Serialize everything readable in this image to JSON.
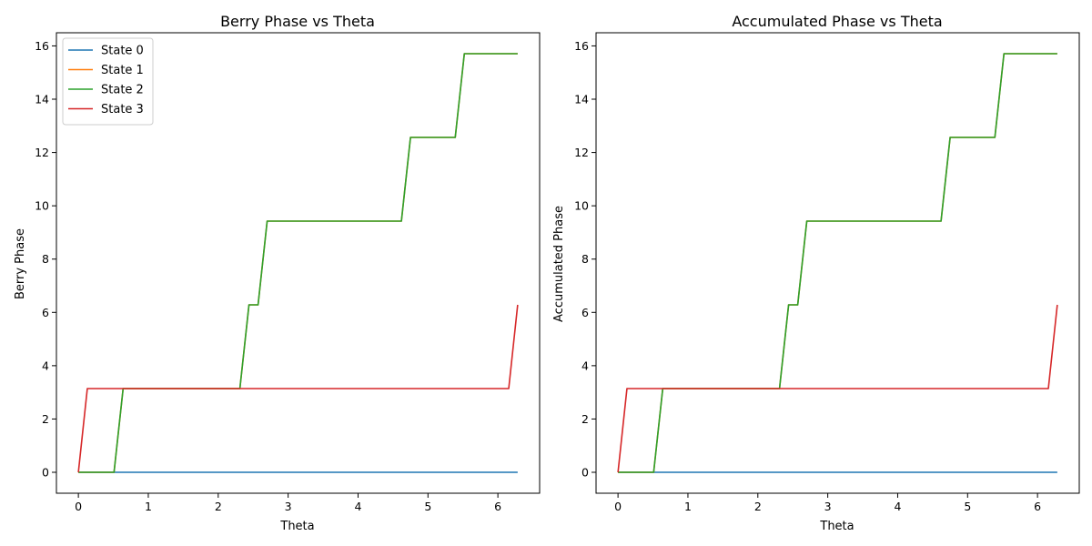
{
  "figure": {
    "colors": {
      "state0": "#1f77b4",
      "state1": "#ff7f0e",
      "state2": "#2ca02c",
      "state3": "#d62728",
      "axes": "#000000",
      "background": "#ffffff"
    }
  },
  "chart_data": [
    {
      "type": "line",
      "title": "Berry Phase vs Theta",
      "xlabel": "Theta",
      "ylabel": "Berry Phase",
      "xlim": [
        -0.314,
        6.597
      ],
      "ylim": [
        -0.785,
        16.493
      ],
      "xticks": [
        0,
        1,
        2,
        3,
        4,
        5,
        6
      ],
      "yticks": [
        0,
        2,
        4,
        6,
        8,
        10,
        12,
        14,
        16
      ],
      "grid": false,
      "legend": "upper-left",
      "series": [
        {
          "name": "State 0",
          "color_key": "state0",
          "x": [
            0,
            6.283
          ],
          "y": [
            0,
            0
          ]
        },
        {
          "name": "State 1",
          "color_key": "state1",
          "x": [
            0,
            0.51,
            0.64,
            2.31,
            2.44,
            2.57,
            2.7,
            4.62,
            4.75,
            5.39,
            5.52,
            6.283
          ],
          "y": [
            0,
            0,
            3.1416,
            3.1416,
            6.2832,
            6.2832,
            9.4248,
            9.4248,
            12.566,
            12.566,
            15.708,
            15.708
          ]
        },
        {
          "name": "State 2",
          "color_key": "state2",
          "x": [
            0,
            0.51,
            0.64,
            2.31,
            2.44,
            2.57,
            2.7,
            4.62,
            4.75,
            5.39,
            5.52,
            6.283
          ],
          "y": [
            0,
            0,
            3.1416,
            3.1416,
            6.2832,
            6.2832,
            9.4248,
            9.4248,
            12.566,
            12.566,
            15.708,
            15.708
          ]
        },
        {
          "name": "State 3",
          "color_key": "state3",
          "x": [
            0,
            0.128,
            6.155,
            6.283
          ],
          "y": [
            0,
            3.1416,
            3.1416,
            6.2832
          ]
        }
      ]
    },
    {
      "type": "line",
      "title": "Accumulated Phase vs Theta",
      "xlabel": "Theta",
      "ylabel": "Accumulated Phase",
      "xlim": [
        -0.314,
        6.597
      ],
      "ylim": [
        -0.785,
        16.493
      ],
      "xticks": [
        0,
        1,
        2,
        3,
        4,
        5,
        6
      ],
      "yticks": [
        0,
        2,
        4,
        6,
        8,
        10,
        12,
        14,
        16
      ],
      "grid": false,
      "legend": "",
      "series": [
        {
          "color_key": "state0",
          "x": [
            0,
            6.283
          ],
          "y": [
            0,
            0
          ]
        },
        {
          "color_key": "state1",
          "x": [
            0,
            0.51,
            0.64,
            2.31,
            2.44,
            2.57,
            2.7,
            4.62,
            4.75,
            5.39,
            5.52,
            6.283
          ],
          "y": [
            0,
            0,
            3.1416,
            3.1416,
            6.2832,
            6.2832,
            9.4248,
            9.4248,
            12.566,
            12.566,
            15.708,
            15.708
          ]
        },
        {
          "color_key": "state2",
          "x": [
            0,
            0.51,
            0.64,
            2.31,
            2.44,
            2.57,
            2.7,
            4.62,
            4.75,
            5.39,
            5.52,
            6.283
          ],
          "y": [
            0,
            0,
            3.1416,
            3.1416,
            6.2832,
            6.2832,
            9.4248,
            9.4248,
            12.566,
            12.566,
            15.708,
            15.708
          ]
        },
        {
          "color_key": "state3",
          "x": [
            0,
            0.128,
            6.155,
            6.283
          ],
          "y": [
            0,
            3.1416,
            3.1416,
            6.2832
          ]
        }
      ]
    }
  ]
}
